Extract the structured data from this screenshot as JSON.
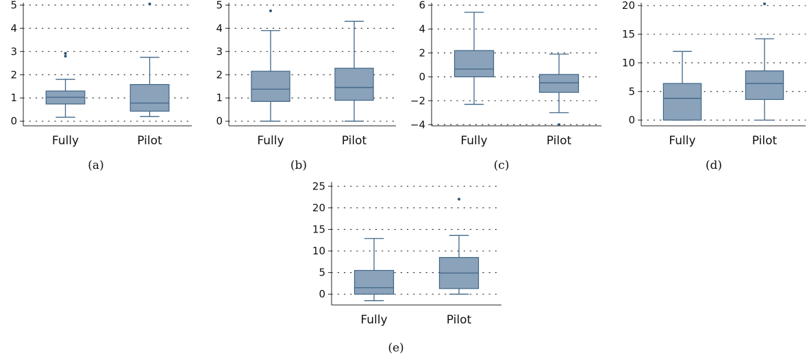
{
  "style": {
    "box_fill": "#8aa2ba",
    "box_stroke": "#3f6586",
    "whisker": "#3f6586",
    "outlier": "#2f5676",
    "grid": "#333333",
    "axis": "#222222"
  },
  "chart_data": [
    {
      "type": "box",
      "caption": "(a)",
      "categories": [
        "Fully",
        "Pilot"
      ],
      "ylim": [
        -0.2,
        5.1
      ],
      "yticks": [
        0,
        1,
        2,
        3,
        4,
        5
      ],
      "grid": "horizontal dotted",
      "boxes": [
        {
          "category": "Fully",
          "whisker_low": 0.17,
          "q1": 0.74,
          "median": 1.03,
          "q3": 1.3,
          "whisker_high": 1.8,
          "outliers": [
            2.8,
            2.92
          ]
        },
        {
          "category": "Pilot",
          "whisker_low": 0.2,
          "q1": 0.43,
          "median": 0.78,
          "q3": 1.58,
          "whisker_high": 2.75,
          "outliers": [
            5.05
          ]
        }
      ]
    },
    {
      "type": "box",
      "caption": "(b)",
      "categories": [
        "Fully",
        "Pilot"
      ],
      "ylim": [
        -0.2,
        5.1
      ],
      "yticks": [
        0,
        1,
        2,
        3,
        4,
        5
      ],
      "grid": "horizontal dotted",
      "boxes": [
        {
          "category": "Fully",
          "whisker_low": 0.0,
          "q1": 0.85,
          "median": 1.38,
          "q3": 2.15,
          "whisker_high": 3.9,
          "outliers": [
            4.75
          ]
        },
        {
          "category": "Pilot",
          "whisker_low": 0.0,
          "q1": 0.9,
          "median": 1.45,
          "q3": 2.28,
          "whisker_high": 4.3,
          "outliers": []
        }
      ]
    },
    {
      "type": "box",
      "caption": "(c)",
      "categories": [
        "Fully",
        "Pilot"
      ],
      "ylim": [
        -4.1,
        6.2
      ],
      "yticks": [
        -4,
        -2,
        0,
        2,
        4,
        6
      ],
      "grid": "horizontal dotted",
      "boxes": [
        {
          "category": "Fully",
          "whisker_low": -2.3,
          "q1": 0.0,
          "median": 0.65,
          "q3": 2.2,
          "whisker_high": 5.4,
          "outliers": []
        },
        {
          "category": "Pilot",
          "whisker_low": -3.0,
          "q1": -1.3,
          "median": -0.5,
          "q3": 0.2,
          "whisker_high": 1.9,
          "outliers": [
            -4.0
          ]
        }
      ]
    },
    {
      "type": "box",
      "caption": "(d)",
      "categories": [
        "Fully",
        "Pilot"
      ],
      "ylim": [
        -1,
        20.5
      ],
      "yticks": [
        0,
        5,
        10,
        15,
        20
      ],
      "grid": "horizontal dotted",
      "boxes": [
        {
          "category": "Fully",
          "whisker_low": 0.0,
          "q1": 0.0,
          "median": 3.8,
          "q3": 6.4,
          "whisker_high": 12.0,
          "outliers": []
        },
        {
          "category": "Pilot",
          "whisker_low": 0.0,
          "q1": 3.6,
          "median": 6.4,
          "q3": 8.6,
          "whisker_high": 14.2,
          "outliers": [
            20.3
          ]
        }
      ]
    },
    {
      "type": "box",
      "caption": "(e)",
      "categories": [
        "Fully",
        "Pilot"
      ],
      "ylim": [
        -2.5,
        26
      ],
      "yticks": [
        0,
        5,
        10,
        15,
        20,
        25
      ],
      "grid": "horizontal dotted",
      "boxes": [
        {
          "category": "Fully",
          "whisker_low": -1.5,
          "q1": 0.0,
          "median": 1.5,
          "q3": 5.5,
          "whisker_high": 12.9,
          "outliers": []
        },
        {
          "category": "Pilot",
          "whisker_low": 0.0,
          "q1": 1.3,
          "median": 4.9,
          "q3": 8.5,
          "whisker_high": 13.6,
          "outliers": [
            22.0
          ]
        }
      ]
    }
  ]
}
